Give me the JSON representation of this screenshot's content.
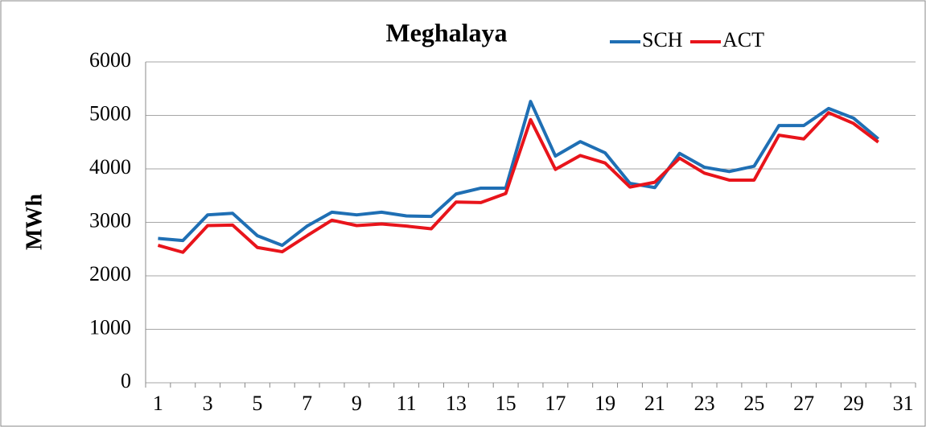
{
  "chart_data": {
    "type": "line",
    "title": "Meghalaya",
    "ylabel": "MWh",
    "categories": [
      "1",
      null,
      "3",
      null,
      "5",
      null,
      "7",
      null,
      "9",
      null,
      "11",
      null,
      "13",
      null,
      "15",
      null,
      "17",
      null,
      "19",
      null,
      "21",
      null,
      "23",
      null,
      "25",
      null,
      "27",
      null,
      "29",
      null,
      "31"
    ],
    "series": [
      {
        "name": "SCH",
        "color": "#1f6fb4",
        "values": [
          2700,
          2660,
          3140,
          3170,
          2750,
          2570,
          2930,
          3190,
          3140,
          3190,
          3120,
          3110,
          3530,
          3640,
          3640,
          5260,
          4240,
          4510,
          4300,
          3730,
          3650,
          4290,
          4030,
          3950,
          4050,
          4810,
          4810,
          5130,
          4950,
          4560,
          null
        ]
      },
      {
        "name": "ACT",
        "color": "#e8141b",
        "values": [
          2570,
          2440,
          2940,
          2950,
          2530,
          2450,
          2750,
          3040,
          2940,
          2970,
          2930,
          2880,
          3380,
          3370,
          3540,
          4920,
          3990,
          4250,
          4110,
          3660,
          3750,
          4200,
          3920,
          3790,
          3790,
          4630,
          4560,
          5050,
          4850,
          4500,
          null
        ]
      }
    ],
    "ylim": [
      0,
      6000
    ],
    "yticks": [
      0,
      1000,
      2000,
      3000,
      4000,
      5000,
      6000
    ],
    "grid": true,
    "legend": "top-right"
  }
}
